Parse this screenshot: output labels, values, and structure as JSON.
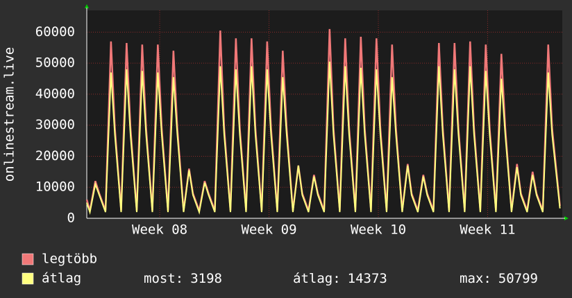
{
  "chart_data": {
    "type": "line",
    "y_label": "onlinestream.live",
    "x": [
      0,
      0.2,
      0.55,
      0.8,
      1.2,
      1.55,
      1.8,
      2.2,
      2.55,
      2.8,
      3.2,
      3.55,
      3.8,
      4.2,
      4.55,
      4.8,
      5.2,
      5.55,
      5.8,
      6.2,
      6.55,
      6.8,
      7.2,
      7.55,
      7.8,
      8.2,
      8.55,
      8.8,
      9.2,
      9.55,
      9.8,
      10.2,
      10.55,
      10.8,
      11.2,
      11.55,
      11.8,
      12.2,
      12.55,
      12.8,
      13.2,
      13.55,
      13.8,
      14.2,
      14.55,
      14.8,
      15.2,
      15.55,
      15.8,
      16.2,
      16.55,
      16.8,
      17.2,
      17.55,
      17.8,
      18.2,
      18.55,
      18.8,
      19.2,
      19.55,
      19.8,
      20.2,
      20.55,
      20.8,
      21.2,
      21.55,
      21.8,
      22.2,
      22.55,
      22.8,
      23.2,
      23.55,
      23.8,
      24.2,
      24.55,
      24.8,
      25.2,
      25.55,
      25.8,
      26.2,
      26.55,
      26.8,
      27.2,
      27.55,
      27.8,
      28.2,
      28.55,
      28.8,
      29.2,
      29.55,
      29.8,
      30.3
    ],
    "series": [
      {
        "name": "legtöbb",
        "color": "#f07878",
        "values": [
          6000,
          2500,
          12000,
          8000,
          2500,
          57000,
          29000,
          2500,
          56500,
          29000,
          2500,
          56000,
          29000,
          2500,
          56000,
          29000,
          2500,
          54000,
          29000,
          2500,
          16000,
          8000,
          2500,
          12000,
          8000,
          2500,
          60500,
          29000,
          2500,
          58000,
          29000,
          2500,
          58000,
          29000,
          2500,
          57000,
          29000,
          2500,
          54000,
          29000,
          2500,
          17000,
          8000,
          2500,
          14000,
          8000,
          2500,
          61000,
          29000,
          2500,
          58000,
          29000,
          2500,
          58500,
          29000,
          2500,
          58000,
          29000,
          2500,
          56000,
          29000,
          2500,
          17500,
          8000,
          2500,
          14000,
          8000,
          2500,
          56500,
          29000,
          2500,
          56500,
          29000,
          2500,
          57000,
          29000,
          2500,
          56000,
          29000,
          2500,
          53000,
          29000,
          2500,
          17500,
          8000,
          2500,
          15000,
          8000,
          2500,
          56000,
          29000,
          4000
        ]
      },
      {
        "name": "átlag",
        "color": "#ffff80",
        "values": [
          5000,
          2000,
          11000,
          7500,
          2000,
          47000,
          27000,
          2000,
          48000,
          27000,
          2000,
          47500,
          27000,
          2000,
          47000,
          27000,
          2000,
          45500,
          27000,
          2000,
          15500,
          7500,
          2000,
          11500,
          7500,
          2000,
          49000,
          27000,
          2000,
          48000,
          27000,
          2000,
          49000,
          27000,
          2000,
          48000,
          27000,
          2000,
          45500,
          27000,
          2000,
          17000,
          7500,
          2000,
          13500,
          7500,
          2000,
          50500,
          27000,
          2000,
          49000,
          27000,
          2000,
          48500,
          27000,
          2000,
          48000,
          27000,
          2000,
          45500,
          27000,
          2000,
          17000,
          7500,
          2000,
          13500,
          7500,
          2000,
          49000,
          27000,
          2000,
          48000,
          27000,
          2000,
          49000,
          27000,
          2000,
          47500,
          27000,
          2000,
          45000,
          27000,
          2000,
          16500,
          7500,
          2000,
          14000,
          7500,
          2000,
          47000,
          27000,
          3198
        ]
      }
    ],
    "xlim": [
      0,
      30.45
    ],
    "xticks": [
      {
        "value": 4.67,
        "label": "Week 08"
      },
      {
        "value": 11.67,
        "label": "Week 09"
      },
      {
        "value": 18.67,
        "label": "Week 10"
      },
      {
        "value": 25.67,
        "label": "Week 11"
      }
    ],
    "ylim": [
      0,
      67000
    ],
    "yticks": [
      0,
      10000,
      20000,
      30000,
      40000,
      50000,
      60000
    ],
    "grid": true,
    "stats": [
      {
        "label": "most:",
        "value": 3198
      },
      {
        "label": "átlag:",
        "value": 14373
      },
      {
        "label": "max:",
        "value": 50799
      }
    ]
  }
}
